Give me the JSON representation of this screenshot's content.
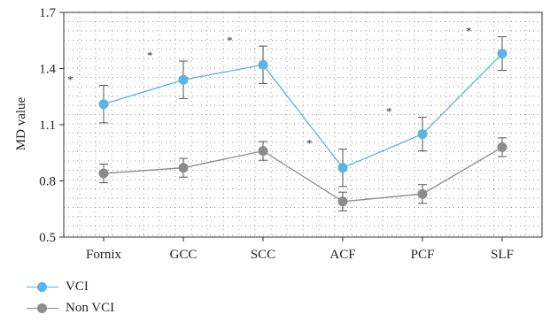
{
  "chart_data": {
    "type": "line",
    "categories": [
      "Fornix",
      "GCC",
      "SCC",
      "ACF",
      "PCF",
      "SLF"
    ],
    "ylabel": "MD value",
    "ylim": [
      0.5,
      1.7
    ],
    "yticks": [
      "0.5",
      "0.8",
      "1.1",
      "1.4",
      "1.7"
    ],
    "grid": "dotted",
    "legend_position": "bottom-left",
    "significance_marker": "*",
    "series": [
      {
        "name": "VCI",
        "color": "#5ab4e6",
        "values": [
          1.21,
          1.34,
          1.42,
          0.87,
          1.05,
          1.48
        ],
        "err": [
          0.1,
          0.1,
          0.1,
          0.1,
          0.09,
          0.09
        ]
      },
      {
        "name": "Non VCI",
        "color": "#8c8c8c",
        "values": [
          0.84,
          0.87,
          0.96,
          0.69,
          0.73,
          0.98
        ],
        "err": [
          0.05,
          0.05,
          0.05,
          0.05,
          0.05,
          0.05
        ]
      }
    ]
  }
}
